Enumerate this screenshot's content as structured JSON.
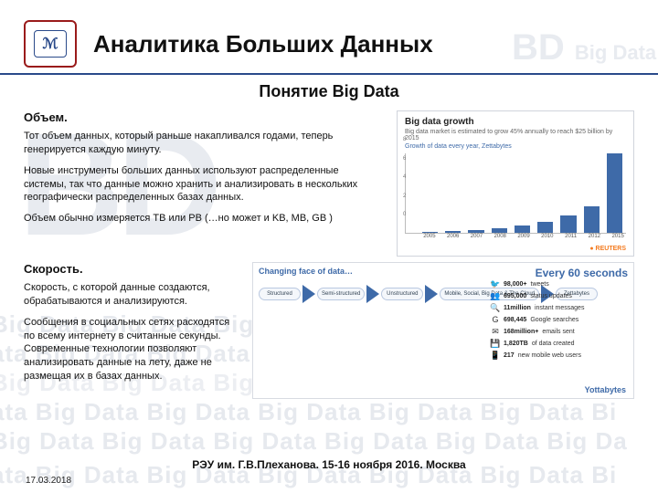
{
  "header": {
    "title": "Аналитика Больших Данных",
    "logo_glyph": "ℳ"
  },
  "subtitle": "Понятие Big Data",
  "watermark": {
    "bd": "BD",
    "bd_sub": "Big Data",
    "strip": "Big Data   Big Data   Big Data   Big Data   Big Data   Big Da",
    "strip_alt": "ata   Big Data   Big Data   Big Data   Big Data   Big Data   Bi"
  },
  "section1": {
    "heading": "Объем.",
    "p1": "Тот объем данных, который раньше накапливался годами, теперь генерируется каждую минуту.",
    "p2": "Новые инструменты больших данных используют распределенные системы, так что данные можно хранить и анализировать в нескольких географически распределенных базах данных.",
    "p3": "Объем обычно измеряется TB или PB (…но может и KB, MB, GB )"
  },
  "chart": {
    "title": "Big data growth",
    "subtitle": "Big data market is estimated to grow 45% annually to reach $25 billion by 2015",
    "legend1": "Growth of data every year, Zettabytes",
    "legend2": "2010 Stored data*, Petabytes",
    "ylim": [
      0,
      8
    ],
    "yticks": [
      "8",
      "6",
      "4",
      "2",
      "0"
    ],
    "years": [
      "2005",
      "2006",
      "2007",
      "2008",
      "2009",
      "2010",
      "2011",
      "2012",
      "2015"
    ],
    "values": [
      0.12,
      0.18,
      0.28,
      0.45,
      0.75,
      1.1,
      1.7,
      2.6,
      7.9
    ],
    "bar_color": "#3e6aa8",
    "source": "REUTERS"
  },
  "section2": {
    "heading": "Скорость.",
    "p1": "Скорость, с которой данные создаются, обрабатываются и анализируются.",
    "p2": "Сообщения в социальных сетях расходятся по всему интернету в считанные секунды. Современные технологии позволяют анализировать данные на лету, даже не размещая их в базах данных."
  },
  "infographic": {
    "left_title": "Changing face of data…",
    "right_title": "Every 60 seconds",
    "clouds": [
      "Structured",
      "Semi-structured",
      "Unstructured",
      "Mobile, Social, Big Data & The Cloud",
      "Zettabytes"
    ],
    "stats": [
      {
        "icon": "🐦",
        "num": "98,000+",
        "label": "tweets"
      },
      {
        "icon": "👥",
        "num": "695,000",
        "label": "status updates"
      },
      {
        "icon": "🔍",
        "num": "11million",
        "label": "instant messages"
      },
      {
        "icon": "G",
        "num": "698,445",
        "label": "Google searches"
      },
      {
        "icon": "✉",
        "num": "168million+",
        "label": "emails sent"
      },
      {
        "icon": "💾",
        "num": "1,820TB",
        "label": "of data created"
      },
      {
        "icon": "📱",
        "num": "217",
        "label": "new mobile web users"
      }
    ],
    "yotta": "Yottabytes"
  },
  "footer": "РЭУ им. Г.В.Плеханова. 15-16 ноября 2016. Москва",
  "date": "17.03.2018"
}
